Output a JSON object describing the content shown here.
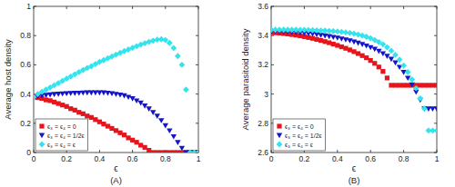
{
  "chart_data": [
    {
      "type": "scatter",
      "title": "(A)",
      "x_label": "ϵ",
      "y_label": "Average host density",
      "x": [
        0,
        0.025,
        0.05,
        0.075,
        0.1,
        0.125,
        0.15,
        0.175,
        0.2,
        0.225,
        0.25,
        0.275,
        0.3,
        0.325,
        0.35,
        0.375,
        0.4,
        0.425,
        0.45,
        0.475,
        0.5,
        0.525,
        0.55,
        0.575,
        0.6,
        0.625,
        0.65,
        0.675,
        0.7,
        0.725,
        0.75,
        0.775,
        0.8,
        0.825,
        0.85,
        0.875,
        0.9,
        0.925,
        0.95,
        0.975,
        1
      ],
      "xlim": [
        0,
        1
      ],
      "xticks": [
        0,
        0.2,
        0.4,
        0.6,
        0.8,
        1
      ],
      "ylim": [
        0,
        1
      ],
      "yticks": [
        0,
        0.2,
        0.4,
        0.6,
        0.8,
        1
      ],
      "legend": "lower left",
      "grid": false,
      "series": [
        {
          "name": "ϵ₃ = ϵ₄ = 0",
          "color": "#e8141c",
          "marker": "square",
          "values": [
            0.38,
            0.375,
            0.37,
            0.36,
            0.355,
            0.345,
            0.335,
            0.325,
            0.315,
            0.3,
            0.29,
            0.275,
            0.265,
            0.25,
            0.24,
            0.225,
            0.21,
            0.195,
            0.18,
            0.165,
            0.15,
            0.135,
            0.12,
            0.1,
            0.085,
            0.07,
            0.05,
            0.035,
            0.015,
            0,
            0,
            0,
            0,
            0,
            0,
            0,
            0,
            0,
            0,
            0,
            0
          ]
        },
        {
          "name": "ϵ₃ = ϵ₄ = 1/2ϵ",
          "color": "#1414c8",
          "marker": "triangle-down",
          "values": [
            0.38,
            0.385,
            0.39,
            0.393,
            0.396,
            0.399,
            0.401,
            0.403,
            0.405,
            0.406,
            0.407,
            0.408,
            0.409,
            0.41,
            0.41,
            0.41,
            0.41,
            0.41,
            0.408,
            0.405,
            0.4,
            0.395,
            0.39,
            0.38,
            0.37,
            0.355,
            0.34,
            0.32,
            0.3,
            0.275,
            0.25,
            0.22,
            0.185,
            0.15,
            0.11,
            0.07,
            0.03,
            0,
            0,
            0,
            0
          ]
        },
        {
          "name": "ϵ₃ = ϵ₄ = ϵ",
          "color": "#33e3ee",
          "marker": "diamond",
          "values": [
            0.38,
            0.4,
            0.415,
            0.43,
            0.445,
            0.46,
            0.475,
            0.49,
            0.505,
            0.52,
            0.535,
            0.55,
            0.565,
            0.578,
            0.59,
            0.605,
            0.62,
            0.632,
            0.645,
            0.657,
            0.67,
            0.682,
            0.694,
            0.705,
            0.716,
            0.727,
            0.738,
            0.748,
            0.757,
            0.765,
            0.772,
            0.775,
            0.77,
            0.75,
            0.715,
            0.66,
            0.6,
            0.43,
            0,
            0,
            0
          ]
        }
      ]
    },
    {
      "type": "scatter",
      "title": "(B)",
      "x_label": "ϵ",
      "y_label": "Average parasitoid density",
      "x": [
        0,
        0.025,
        0.05,
        0.075,
        0.1,
        0.125,
        0.15,
        0.175,
        0.2,
        0.225,
        0.25,
        0.275,
        0.3,
        0.325,
        0.35,
        0.375,
        0.4,
        0.425,
        0.45,
        0.475,
        0.5,
        0.525,
        0.55,
        0.575,
        0.6,
        0.625,
        0.65,
        0.675,
        0.7,
        0.725,
        0.75,
        0.775,
        0.8,
        0.825,
        0.85,
        0.875,
        0.9,
        0.925,
        0.95,
        0.975,
        1
      ],
      "xlim": [
        0,
        1
      ],
      "xticks": [
        0,
        0.2,
        0.4,
        0.6,
        0.8,
        1
      ],
      "ylim": [
        2.6,
        3.6
      ],
      "yticks": [
        2.6,
        2.8,
        3,
        3.2,
        3.4,
        3.6
      ],
      "legend": "lower left",
      "grid": false,
      "series": [
        {
          "name": "ϵ₃ = ϵ₄ = 0",
          "color": "#e8141c",
          "marker": "square",
          "values": [
            3.42,
            3.419,
            3.417,
            3.414,
            3.411,
            3.407,
            3.403,
            3.398,
            3.393,
            3.387,
            3.381,
            3.374,
            3.367,
            3.359,
            3.351,
            3.342,
            3.333,
            3.323,
            3.313,
            3.302,
            3.29,
            3.277,
            3.263,
            3.248,
            3.23,
            3.21,
            3.185,
            3.155,
            3.11,
            3.06,
            3.06,
            3.06,
            3.06,
            3.06,
            3.06,
            3.06,
            3.06,
            3.06,
            3.06,
            3.06,
            3.06
          ]
        },
        {
          "name": "ϵ₃ = ϵ₄ = 1/2ϵ",
          "color": "#1414c8",
          "marker": "triangle-down",
          "values": [
            3.43,
            3.43,
            3.429,
            3.428,
            3.427,
            3.425,
            3.423,
            3.421,
            3.418,
            3.415,
            3.412,
            3.408,
            3.404,
            3.4,
            3.395,
            3.39,
            3.385,
            3.379,
            3.373,
            3.366,
            3.358,
            3.35,
            3.341,
            3.331,
            3.32,
            3.308,
            3.294,
            3.278,
            3.26,
            3.24,
            3.215,
            3.185,
            3.15,
            3.11,
            3.065,
            3.015,
            2.96,
            2.9,
            2.9,
            2.9,
            2.9
          ]
        },
        {
          "name": "ϵ₃ = ϵ₄ = ϵ",
          "color": "#33e3ee",
          "marker": "diamond",
          "values": [
            3.44,
            3.44,
            3.44,
            3.44,
            3.44,
            3.44,
            3.44,
            3.439,
            3.439,
            3.438,
            3.437,
            3.436,
            3.435,
            3.434,
            3.432,
            3.43,
            3.428,
            3.425,
            3.422,
            3.418,
            3.413,
            3.407,
            3.4,
            3.392,
            3.382,
            3.37,
            3.356,
            3.34,
            3.32,
            3.296,
            3.268,
            3.235,
            3.195,
            3.15,
            3.1,
            3.04,
            2.97,
            2.9,
            2.75,
            2.75,
            2.75
          ]
        }
      ]
    }
  ]
}
